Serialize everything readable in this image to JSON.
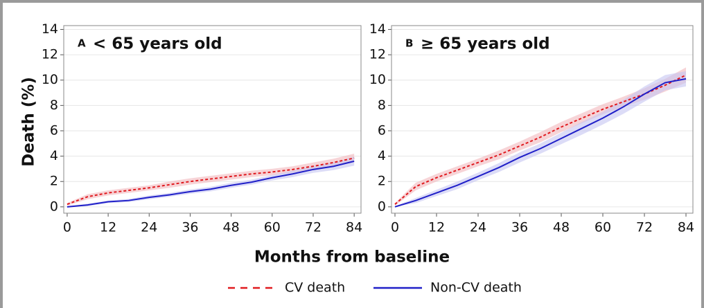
{
  "ylabel": "Death (%)",
  "xlabel": "Months from baseline",
  "chart_data": [
    {
      "type": "line",
      "panel": "A",
      "title": "< 65 years old",
      "x": [
        0,
        6,
        12,
        18,
        24,
        30,
        36,
        42,
        48,
        54,
        60,
        66,
        72,
        78,
        84
      ],
      "xlim": [
        -1,
        86
      ],
      "xticks": [
        0,
        12,
        24,
        36,
        48,
        60,
        72,
        84
      ],
      "ylim": [
        -0.5,
        14.3
      ],
      "yticks": [
        0,
        2,
        4,
        6,
        8,
        10,
        12,
        14
      ],
      "grid": true,
      "series": [
        {
          "name": "CV death",
          "color": "#e0191e",
          "line_style": "dashed",
          "band_color": "#f2b8bd",
          "values": [
            0.2,
            0.8,
            1.1,
            1.3,
            1.5,
            1.75,
            2.0,
            2.2,
            2.4,
            2.6,
            2.75,
            2.95,
            3.2,
            3.5,
            3.85
          ],
          "lower": [
            0.1,
            0.6,
            0.9,
            1.1,
            1.3,
            1.5,
            1.75,
            1.95,
            2.15,
            2.35,
            2.5,
            2.7,
            2.9,
            3.2,
            3.5
          ],
          "upper": [
            0.3,
            1.0,
            1.3,
            1.5,
            1.7,
            2.0,
            2.25,
            2.45,
            2.65,
            2.85,
            3.0,
            3.2,
            3.5,
            3.8,
            4.2
          ]
        },
        {
          "name": "Non-CV death",
          "color": "#1f1fc8",
          "line_style": "solid",
          "band_color": "#c4c4f2",
          "values": [
            0,
            0.15,
            0.4,
            0.5,
            0.75,
            0.95,
            1.2,
            1.4,
            1.7,
            1.95,
            2.3,
            2.6,
            2.95,
            3.2,
            3.6
          ],
          "lower": [
            0,
            0.05,
            0.3,
            0.38,
            0.6,
            0.8,
            1.03,
            1.22,
            1.5,
            1.75,
            2.08,
            2.35,
            2.68,
            2.9,
            3.25
          ],
          "upper": [
            0.05,
            0.25,
            0.5,
            0.62,
            0.9,
            1.1,
            1.37,
            1.58,
            1.9,
            2.15,
            2.52,
            2.85,
            3.22,
            3.5,
            3.95
          ]
        }
      ]
    },
    {
      "type": "line",
      "panel": "B",
      "title": "≥ 65 years old",
      "x": [
        0,
        6,
        12,
        18,
        24,
        30,
        36,
        42,
        48,
        54,
        60,
        66,
        72,
        78,
        84
      ],
      "xlim": [
        -1,
        86
      ],
      "xticks": [
        0,
        12,
        24,
        36,
        48,
        60,
        72,
        84
      ],
      "ylim": [
        -0.5,
        14.3
      ],
      "yticks": [
        0,
        2,
        4,
        6,
        8,
        10,
        12,
        14
      ],
      "grid": true,
      "series": [
        {
          "name": "CV death",
          "color": "#e0191e",
          "line_style": "dashed",
          "band_color": "#f2b8bd",
          "values": [
            0.2,
            1.6,
            2.3,
            2.9,
            3.5,
            4.1,
            4.8,
            5.5,
            6.3,
            7.0,
            7.7,
            8.3,
            8.9,
            9.6,
            10.4
          ],
          "lower": [
            0.1,
            1.3,
            2.0,
            2.6,
            3.2,
            3.75,
            4.45,
            5.1,
            5.9,
            6.6,
            7.3,
            7.9,
            8.45,
            9.1,
            9.8
          ],
          "upper": [
            0.3,
            1.9,
            2.6,
            3.2,
            3.8,
            4.45,
            5.15,
            5.9,
            6.7,
            7.4,
            8.1,
            8.7,
            9.35,
            10.1,
            11.0
          ]
        },
        {
          "name": "Non-CV death",
          "color": "#1f1fc8",
          "line_style": "solid",
          "band_color": "#c4c4f2",
          "values": [
            0,
            0.5,
            1.1,
            1.7,
            2.4,
            3.1,
            3.9,
            4.6,
            5.4,
            6.2,
            7.0,
            7.9,
            8.9,
            9.8,
            10.1
          ],
          "lower": [
            0,
            0.3,
            0.85,
            1.4,
            2.1,
            2.75,
            3.5,
            4.2,
            4.95,
            5.7,
            6.5,
            7.35,
            8.3,
            9.2,
            9.5
          ],
          "upper": [
            0.05,
            0.7,
            1.35,
            2.0,
            2.7,
            3.45,
            4.3,
            5.0,
            5.85,
            6.7,
            7.5,
            8.45,
            9.5,
            10.4,
            10.7
          ]
        }
      ]
    }
  ]
}
